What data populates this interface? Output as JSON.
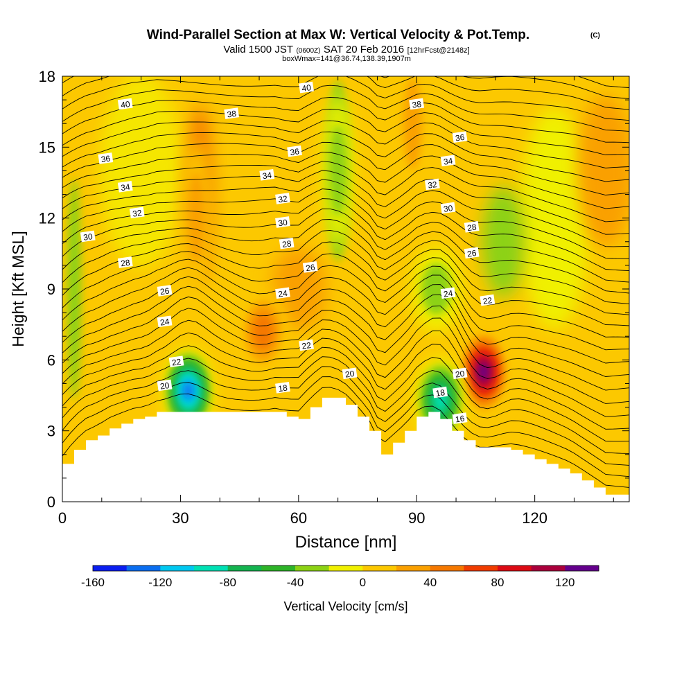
{
  "chart_data": {
    "type": "heatmap",
    "title": {
      "main": "Wind-Parallel Section at Max W: Vertical Velocity & Pot.Temp.",
      "copyright": "(C)",
      "valid_prefix": "Valid 1500 JST",
      "valid_utc": "(0600Z)",
      "valid_date": "SAT 20 Feb 2016",
      "forecast": "[12hrFcst@2148z]",
      "box": "boxWmax=141@36.74,138.39,1907m"
    },
    "xlabel": "Distance [nm]",
    "ylabel": "Height [Kft MSL]",
    "xlim": [
      0,
      144
    ],
    "ylim": [
      0,
      18
    ],
    "x_ticks": [
      "0",
      "30",
      "60",
      "90",
      "120"
    ],
    "y_ticks": [
      "0",
      "3",
      "6",
      "9",
      "12",
      "15",
      "18"
    ],
    "colorbar": {
      "label": "Vertical Velocity [cm/s]",
      "range": [
        -160,
        140
      ],
      "tick_labels": [
        "-160",
        "-120",
        "-80",
        "-40",
        "0",
        "40",
        "80",
        "120"
      ],
      "colors": [
        "#0a1ef0",
        "#0a6ef0",
        "#00c8f0",
        "#00e0b4",
        "#14b450",
        "#2db428",
        "#8cd214",
        "#f0f000",
        "#fcc800",
        "#faa000",
        "#f57800",
        "#f03c00",
        "#dc0a14",
        "#aa003c",
        "#64008c"
      ]
    },
    "terrain_kft": [
      [
        0,
        1.6
      ],
      [
        3,
        2.2
      ],
      [
        6,
        2.6
      ],
      [
        9,
        2.8
      ],
      [
        12,
        3.1
      ],
      [
        15,
        3.3
      ],
      [
        18,
        3.5
      ],
      [
        21,
        3.6
      ],
      [
        24,
        3.8
      ],
      [
        30,
        3.8
      ],
      [
        36,
        3.8
      ],
      [
        42,
        3.8
      ],
      [
        48,
        3.8
      ],
      [
        54,
        3.8
      ],
      [
        57,
        3.6
      ],
      [
        60,
        3.5
      ],
      [
        63,
        4.0
      ],
      [
        66,
        4.4
      ],
      [
        69,
        4.4
      ],
      [
        72,
        4.1
      ],
      [
        75,
        3.6
      ],
      [
        78,
        3.0
      ],
      [
        81,
        2.0
      ],
      [
        84,
        2.5
      ],
      [
        87,
        3.0
      ],
      [
        90,
        3.6
      ],
      [
        93,
        3.8
      ],
      [
        96,
        3.5
      ],
      [
        99,
        3.0
      ],
      [
        102,
        2.6
      ],
      [
        105,
        2.3
      ],
      [
        108,
        2.3
      ],
      [
        111,
        2.3
      ],
      [
        114,
        2.2
      ],
      [
        117,
        2.0
      ],
      [
        120,
        1.8
      ],
      [
        123,
        1.6
      ],
      [
        126,
        1.4
      ],
      [
        129,
        1.2
      ],
      [
        132,
        0.9
      ],
      [
        135,
        0.6
      ],
      [
        138,
        0.3
      ],
      [
        144,
        0.3
      ]
    ],
    "w_features": [
      {
        "x": 107,
        "y": 5.5,
        "peak_cm_s": 141
      },
      {
        "x": 51,
        "y": 7.2,
        "peak_cm_s": 70
      },
      {
        "x": 32,
        "y": 4.7,
        "peak_cm_s": -150
      },
      {
        "x": 96,
        "y": 4.3,
        "peak_cm_s": -100
      },
      {
        "x": 34,
        "y": 12,
        "peak_cm_s": 45
      },
      {
        "x": 89,
        "y": 16,
        "peak_cm_s": 40
      },
      {
        "x": 70,
        "y": 14,
        "peak_cm_s": -40
      },
      {
        "x": 95,
        "y": 9,
        "peak_cm_s": -40
      }
    ],
    "theta_labels": [
      {
        "x": 16,
        "y": 16.8,
        "text": "40"
      },
      {
        "x": 11,
        "y": 14.5,
        "text": "36"
      },
      {
        "x": 16,
        "y": 13.3,
        "text": "34"
      },
      {
        "x": 19,
        "y": 12.2,
        "text": "32"
      },
      {
        "x": 6.5,
        "y": 11.2,
        "text": "30"
      },
      {
        "x": 16,
        "y": 10.1,
        "text": "28"
      },
      {
        "x": 26,
        "y": 8.9,
        "text": "26"
      },
      {
        "x": 26,
        "y": 7.6,
        "text": "24"
      },
      {
        "x": 29,
        "y": 5.9,
        "text": "22"
      },
      {
        "x": 26,
        "y": 4.9,
        "text": "20"
      },
      {
        "x": 43,
        "y": 16.4,
        "text": "38"
      },
      {
        "x": 62,
        "y": 17.5,
        "text": "40"
      },
      {
        "x": 59,
        "y": 14.8,
        "text": "36"
      },
      {
        "x": 52,
        "y": 13.8,
        "text": "34"
      },
      {
        "x": 56,
        "y": 12.8,
        "text": "32"
      },
      {
        "x": 56,
        "y": 11.8,
        "text": "30"
      },
      {
        "x": 57,
        "y": 10.9,
        "text": "28"
      },
      {
        "x": 63,
        "y": 9.9,
        "text": "26"
      },
      {
        "x": 56,
        "y": 8.8,
        "text": "24"
      },
      {
        "x": 62,
        "y": 6.6,
        "text": "22"
      },
      {
        "x": 56,
        "y": 4.8,
        "text": "18"
      },
      {
        "x": 73,
        "y": 5.4,
        "text": "20"
      },
      {
        "x": 90,
        "y": 16.8,
        "text": "38"
      },
      {
        "x": 101,
        "y": 15.4,
        "text": "36"
      },
      {
        "x": 98,
        "y": 14.4,
        "text": "34"
      },
      {
        "x": 94,
        "y": 13.4,
        "text": "32"
      },
      {
        "x": 98,
        "y": 12.4,
        "text": "30"
      },
      {
        "x": 104,
        "y": 11.6,
        "text": "28"
      },
      {
        "x": 104,
        "y": 10.5,
        "text": "26"
      },
      {
        "x": 98,
        "y": 8.8,
        "text": "24"
      },
      {
        "x": 108,
        "y": 8.5,
        "text": "22"
      },
      {
        "x": 101,
        "y": 5.4,
        "text": "20"
      },
      {
        "x": 96,
        "y": 4.6,
        "text": "18"
      },
      {
        "x": 101,
        "y": 3.5,
        "text": "16"
      }
    ]
  }
}
